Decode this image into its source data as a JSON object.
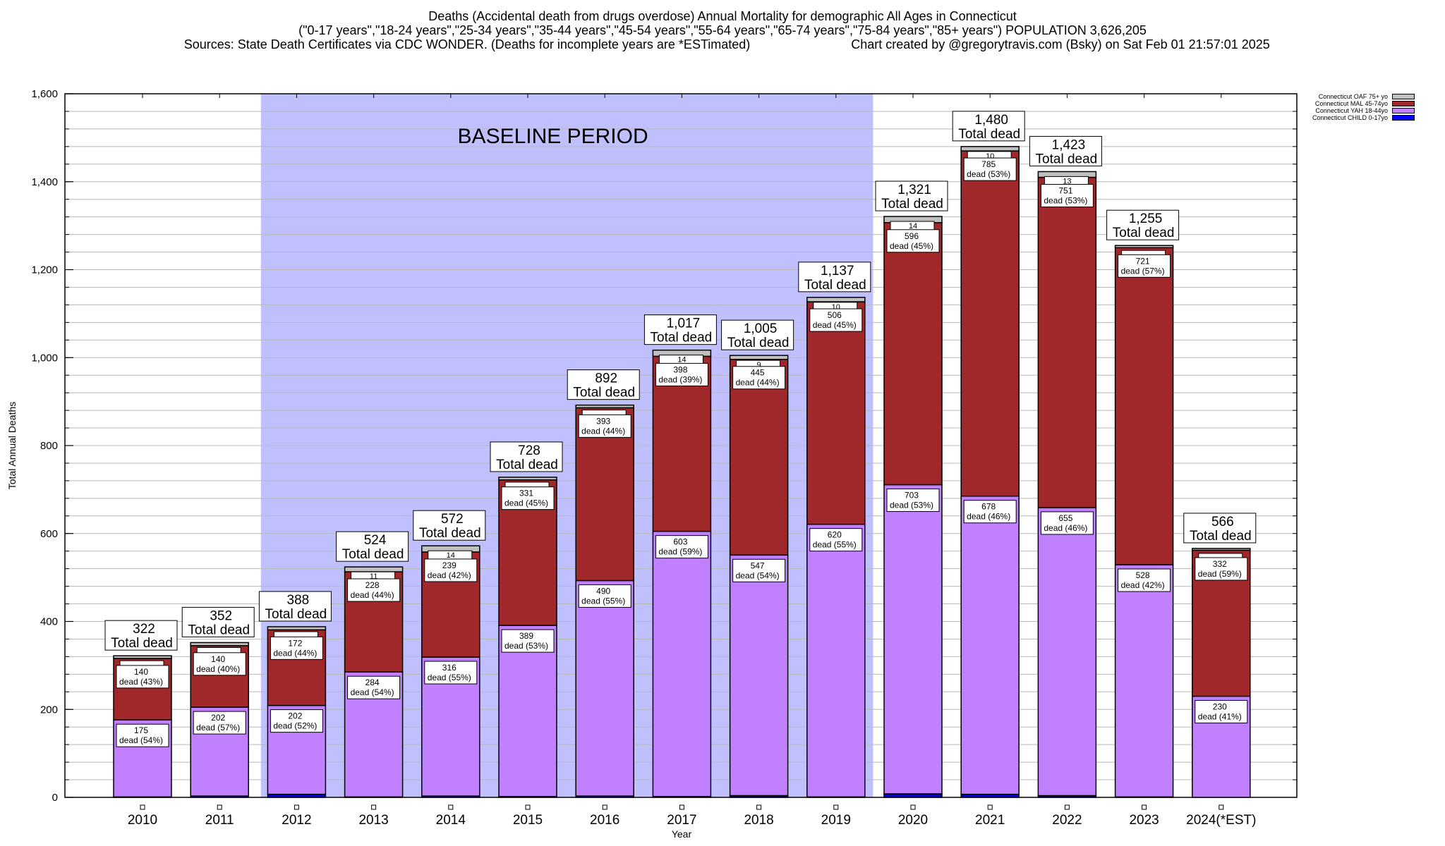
{
  "chart_data": {
    "type": "bar",
    "stacked": true,
    "title": "Deaths (Accidental death from drugs overdose) Annual Mortality for demographic All Ages in Connecticut",
    "subtitle": "(\"0-17 years\",\"18-24 years\",\"25-34 years\",\"35-44 years\",\"45-54 years\",\"55-64 years\",\"65-74 years\",\"75-84 years\",\"85+ years\") POPULATION 3,626,205",
    "source": "Sources: State Death Certificates via CDC WONDER. (Deaths for incomplete years are *ESTimated)",
    "credit": "Chart created by @gregorytravis.com (Bsky) on Sat Feb 01 21:57:01 2025",
    "xlabel": "Year",
    "ylabel": "Total Annual Deaths",
    "ylim": [
      0,
      1600
    ],
    "yticks": [
      0,
      200,
      400,
      600,
      800,
      1000,
      1200,
      1400,
      1600
    ],
    "ytick_labels": [
      "0",
      "200",
      "400",
      "600",
      "800",
      "1,000",
      "1,200",
      "1,400",
      "1,600"
    ],
    "grid": true,
    "legend_position": "top-right",
    "categories": [
      "2010",
      "2011",
      "2012",
      "2013",
      "2014",
      "2015",
      "2016",
      "2017",
      "2018",
      "2019",
      "2020",
      "2021",
      "2022",
      "2023",
      "2024(*EST)"
    ],
    "series": [
      {
        "name": "Connecticut CHILD 0-17yo",
        "color": "#0000ff",
        "values": [
          1,
          3,
          7,
          1,
          3,
          2,
          3,
          2,
          4,
          1,
          8,
          7,
          4,
          1,
          0
        ]
      },
      {
        "name": "Connecticut YAH 18-44yo",
        "color": "#c080ff",
        "values": [
          175,
          202,
          202,
          284,
          316,
          389,
          490,
          603,
          547,
          620,
          703,
          678,
          655,
          528,
          230
        ]
      },
      {
        "name": "Connecticut MAL 45-74yo",
        "color": "#a0282a",
        "values": [
          140,
          140,
          172,
          228,
          239,
          331,
          393,
          398,
          445,
          506,
          596,
          785,
          751,
          721,
          332
        ]
      },
      {
        "name": "Connecticut OAF 75+ yo",
        "color": "#c0c0c0",
        "values": [
          6,
          7,
          7,
          11,
          14,
          6,
          6,
          14,
          9,
          10,
          14,
          10,
          13,
          5,
          4
        ]
      }
    ],
    "totals": [
      322,
      352,
      388,
      524,
      572,
      728,
      892,
      1017,
      1005,
      1137,
      1321,
      1480,
      1423,
      1255,
      566
    ],
    "total_labels": [
      "322",
      "352",
      "388",
      "524",
      "572",
      "728",
      "892",
      "1,017",
      "1,005",
      "1,137",
      "1,321",
      "1,480",
      "1,423",
      "1,255",
      "566"
    ],
    "total_suffix": "Total dead",
    "yah_labels": [
      "175",
      "202",
      "202",
      "284",
      "316",
      "389",
      "490",
      "603",
      "547",
      "620",
      "703",
      "678",
      "655",
      "528",
      "230"
    ],
    "yah_pct_labels": [
      "dead (54%)",
      "dead (57%)",
      "dead (52%)",
      "dead (54%)",
      "dead (55%)",
      "dead (53%)",
      "dead (55%)",
      "dead (59%)",
      "dead (54%)",
      "dead (55%)",
      "dead (53%)",
      "dead (46%)",
      "dead (46%)",
      "dead (42%)",
      "dead (41%)"
    ],
    "mal_labels": [
      "140",
      "140",
      "172",
      "228",
      "239",
      "331",
      "393",
      "398",
      "445",
      "506",
      "596",
      "785",
      "751",
      "721",
      "332"
    ],
    "mal_pct_labels": [
      "dead (43%)",
      "dead (40%)",
      "dead (44%)",
      "dead (44%)",
      "dead (42%)",
      "dead (45%)",
      "dead (44%)",
      "dead (39%)",
      "dead (44%)",
      "dead (45%)",
      "dead (45%)",
      "dead (53%)",
      "dead (53%)",
      "dead (57%)",
      "dead (59%)"
    ],
    "oaf_labels": [
      "",
      "",
      "",
      "11",
      "14",
      "",
      "",
      "14",
      "9",
      "10",
      "14",
      "10",
      "13",
      "",
      ""
    ],
    "annotation": {
      "text": "BASELINE PERIOD",
      "from": "2012",
      "to": "2019",
      "color": "#c0c0ff"
    }
  }
}
